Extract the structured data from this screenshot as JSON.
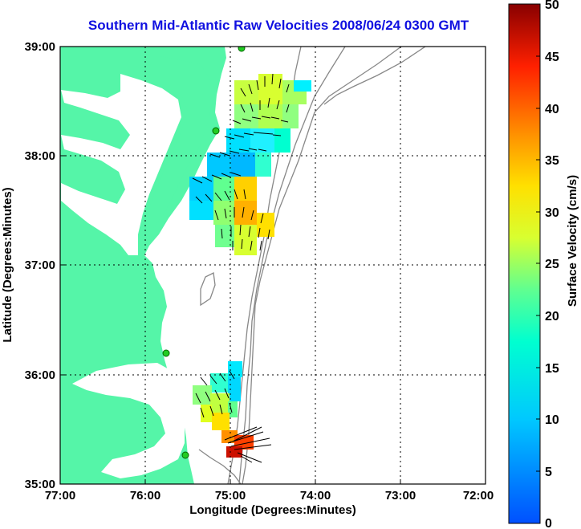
{
  "title": "Southern Mid-Atlantic Raw Velocities 2008/06/24 0300 GMT",
  "axes": {
    "xlabel": "Longitude (Degrees:Minutes)",
    "ylabel": "Latitude (Degrees:Minutes)",
    "x_ticks": [
      "77:00",
      "76:00",
      "75:00",
      "74:00",
      "73:00",
      "72:00"
    ],
    "y_ticks": [
      "39:00",
      "38:00",
      "37:00",
      "36:00",
      "35:00"
    ]
  },
  "colorbar": {
    "label": "Surface Velocity (cm/s)",
    "ticks": [
      "50",
      "45",
      "40",
      "35",
      "30",
      "25",
      "20",
      "15",
      "10",
      "5",
      "0"
    ],
    "range": [
      0,
      50
    ]
  },
  "colors": {
    "land": "#55f5a8",
    "title": "#1010e0",
    "bathymetry": "#888888",
    "station": "#22cc22"
  },
  "chart_data": {
    "type": "heatmap",
    "title": "Southern Mid-Atlantic Raw Velocities 2008/06/24 0300 GMT",
    "xlabel": "Longitude (Degrees:Minutes)",
    "ylabel": "Latitude (Degrees:Minutes)",
    "xlim": [
      -77,
      -72
    ],
    "ylim": [
      35,
      39
    ],
    "grid": true,
    "colorbar_label": "Surface Velocity (cm/s)",
    "colorbar_range": [
      0,
      50
    ],
    "stations": [
      {
        "lon": -74.88,
        "lat": 38.99
      },
      {
        "lon": -75.15,
        "lat": 38.22
      },
      {
        "lon": -75.68,
        "lat": 36.18
      },
      {
        "lon": -75.53,
        "lat": 35.25
      }
    ],
    "velocity_cells": [
      {
        "lon": -74.95,
        "lat": 38.6,
        "speed": 25
      },
      {
        "lon": -74.8,
        "lat": 38.65,
        "speed": 24
      },
      {
        "lon": -74.65,
        "lat": 38.55,
        "speed": 22
      },
      {
        "lon": -74.5,
        "lat": 38.7,
        "speed": 18
      },
      {
        "lon": -74.6,
        "lat": 38.4,
        "speed": 20
      },
      {
        "lon": -74.9,
        "lat": 38.4,
        "speed": 18
      },
      {
        "lon": -74.75,
        "lat": 38.25,
        "speed": 12
      },
      {
        "lon": -75.0,
        "lat": 38.15,
        "speed": 10
      },
      {
        "lon": -74.7,
        "lat": 38.05,
        "speed": 10
      },
      {
        "lon": -75.15,
        "lat": 37.95,
        "speed": 8
      },
      {
        "lon": -74.9,
        "lat": 37.9,
        "speed": 12
      },
      {
        "lon": -75.3,
        "lat": 37.8,
        "speed": 10
      },
      {
        "lon": -75.0,
        "lat": 37.7,
        "speed": 28
      },
      {
        "lon": -75.45,
        "lat": 37.6,
        "speed": 12
      },
      {
        "lon": -75.2,
        "lat": 37.55,
        "speed": 20
      },
      {
        "lon": -74.85,
        "lat": 37.55,
        "speed": 30
      },
      {
        "lon": -75.05,
        "lat": 37.4,
        "speed": 22
      },
      {
        "lon": -74.7,
        "lat": 37.3,
        "speed": 26
      },
      {
        "lon": -74.9,
        "lat": 37.2,
        "speed": 24
      },
      {
        "lon": -75.15,
        "lat": 37.2,
        "speed": 18
      },
      {
        "lon": -74.95,
        "lat": 35.95,
        "speed": 14
      },
      {
        "lon": -75.2,
        "lat": 35.9,
        "speed": 18
      },
      {
        "lon": -75.05,
        "lat": 35.75,
        "speed": 16
      },
      {
        "lon": -75.4,
        "lat": 35.7,
        "speed": 20
      },
      {
        "lon": -75.15,
        "lat": 35.55,
        "speed": 22
      },
      {
        "lon": -75.3,
        "lat": 35.45,
        "speed": 26
      },
      {
        "lon": -75.05,
        "lat": 35.4,
        "speed": 30
      },
      {
        "lon": -74.95,
        "lat": 35.3,
        "speed": 45
      },
      {
        "lon": -74.85,
        "lat": 35.35,
        "speed": 40
      }
    ]
  }
}
